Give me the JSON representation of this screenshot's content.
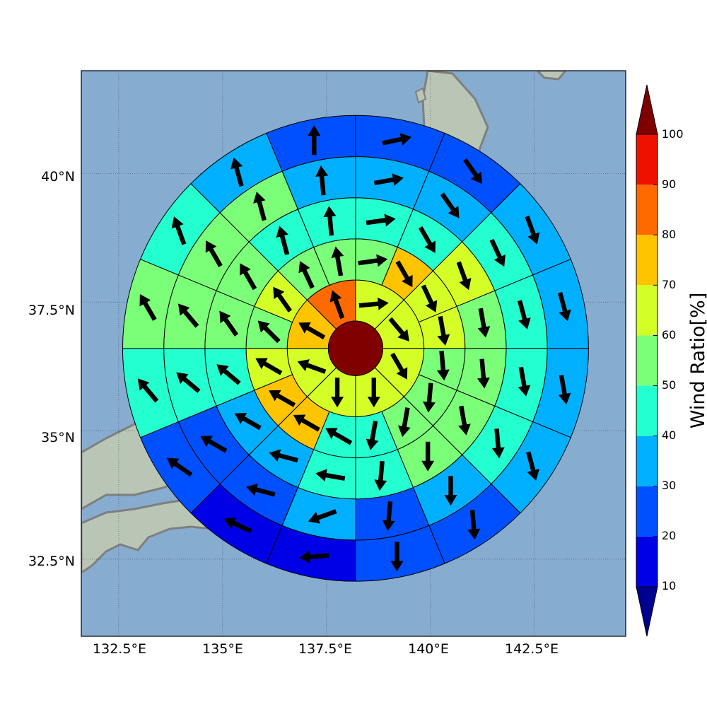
{
  "chart_data": {
    "type": "heatmap",
    "subtype": "polar-sector-map",
    "map": {
      "lon_range": [
        131.6,
        144.7
      ],
      "lat_range": [
        31.0,
        42.0
      ],
      "xticks": [
        132.5,
        135,
        137.5,
        140,
        142.5
      ],
      "yticks": [
        32.5,
        35,
        37.5,
        40
      ],
      "xtick_labels": [
        "132.5°E",
        "135°E",
        "137.5°E",
        "140°E",
        "142.5°E"
      ],
      "ytick_labels": [
        "32.5°N",
        "35°N",
        "37.5°N",
        "40°N"
      ],
      "grid": true,
      "colors": {
        "ocean": "#86acd0",
        "land": "#b9c6b6",
        "coast": "#7f7f7f"
      }
    },
    "center": {
      "lon": 138.2,
      "lat": 36.6,
      "value": 100
    },
    "ring_edges_deg": [
      0.53,
      1.33,
      2.13,
      2.93,
      3.73,
      4.53
    ],
    "sectors_per_ring": [
      8,
      16,
      16,
      16,
      16
    ],
    "sector_values": [
      [
        65,
        65,
        60,
        60,
        65,
        65,
        75,
        85
      ],
      [
        55,
        70,
        65,
        60,
        55,
        55,
        50,
        45,
        45,
        70,
        75,
        60,
        50,
        60,
        55,
        55
      ],
      [
        45,
        40,
        65,
        55,
        55,
        55,
        50,
        40,
        45,
        35,
        35,
        45,
        55,
        55,
        45,
        45
      ],
      [
        35,
        35,
        40,
        40,
        45,
        40,
        35,
        25,
        35,
        25,
        25,
        40,
        50,
        50,
        50,
        35
      ],
      [
        25,
        25,
        30,
        35,
        35,
        35,
        25,
        25,
        15,
        15,
        25,
        45,
        50,
        45,
        35,
        20
      ]
    ],
    "arrow_dir_deg": [
      [
        85,
        140,
        150,
        180,
        180,
        290,
        300,
        340
      ],
      [
        82,
        150,
        155,
        170,
        175,
        185,
        190,
        190,
        300,
        300,
        300,
        300,
        315,
        325,
        335,
        350
      ],
      [
        82,
        150,
        160,
        170,
        175,
        170,
        180,
        185,
        280,
        285,
        300,
        310,
        325,
        330,
        345,
        355
      ],
      [
        80,
        145,
        155,
        165,
        170,
        175,
        180,
        185,
        250,
        285,
        300,
        310,
        320,
        330,
        345,
        355
      ],
      [
        78,
        145,
        160,
        165,
        170,
        165,
        175,
        180,
        265,
        295,
        305,
        320,
        330,
        340,
        345,
        0
      ]
    ],
    "colorbar": {
      "label": "Wind Ratio[%]",
      "ticks": [
        10,
        20,
        30,
        40,
        50,
        60,
        70,
        80,
        90,
        100
      ],
      "extend": "both",
      "colors": [
        "#000090",
        "#0000e6",
        "#0050ff",
        "#00b0ff",
        "#24ffd0",
        "#7cff78",
        "#d4ff26",
        "#ffc400",
        "#ff6a00",
        "#f01000",
        "#800000"
      ]
    }
  }
}
